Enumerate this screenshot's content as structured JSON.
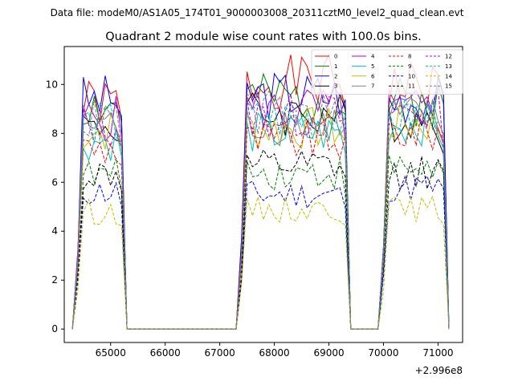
{
  "chart_data": {
    "type": "line",
    "suptitle": "Data file: modeM0/AS1A05_174T01_9000003008_20311cztM0_level2_quad_clean.evt",
    "title": "Quadrant 2 module wise count rates with 100.0s bins.",
    "xlabel": "",
    "ylabel": "",
    "x_offset_label": "+2.996e8",
    "xlim": [
      64150,
      71450
    ],
    "ylim": [
      -0.55,
      11.55
    ],
    "xticks": [
      65000,
      66000,
      67000,
      68000,
      69000,
      70000,
      71000
    ],
    "yticks": [
      0,
      2,
      4,
      6,
      8,
      10
    ],
    "legend_location": "upper-right",
    "legend_columns": 4,
    "segments": [
      {
        "start": 64400,
        "end": 65200
      },
      {
        "start": 67400,
        "end": 69300
      },
      {
        "start": 70000,
        "end": 71100
      }
    ],
    "series": [
      {
        "name": "0",
        "color": "#ff0000",
        "dashed": false,
        "levels": [
          9.2,
          10.1,
          9.9
        ]
      },
      {
        "name": "1",
        "color": "#008000",
        "dashed": false,
        "levels": [
          9.1,
          9.4,
          9.3
        ]
      },
      {
        "name": "2",
        "color": "#0000ff",
        "dashed": false,
        "levels": [
          9.4,
          9.6,
          9.4
        ]
      },
      {
        "name": "3",
        "color": "#000000",
        "dashed": false,
        "levels": [
          8.3,
          8.8,
          8.6
        ]
      },
      {
        "name": "4",
        "color": "#bf00bf",
        "dashed": false,
        "levels": [
          8.6,
          9.0,
          8.9
        ]
      },
      {
        "name": "5",
        "color": "#00bfbf",
        "dashed": false,
        "levels": [
          7.7,
          8.0,
          8.4
        ]
      },
      {
        "name": "6",
        "color": "#bfbf00",
        "dashed": false,
        "levels": [
          8.1,
          8.2,
          8.4
        ]
      },
      {
        "name": "7",
        "color": "#808080",
        "dashed": false,
        "levels": [
          8.4,
          8.4,
          8.6
        ]
      },
      {
        "name": "8",
        "color": "#ff0000",
        "dashed": true,
        "levels": [
          7.4,
          7.7,
          8.1
        ]
      },
      {
        "name": "9",
        "color": "#008000",
        "dashed": true,
        "levels": [
          6.3,
          6.4,
          6.6
        ]
      },
      {
        "name": "10",
        "color": "#0000ff",
        "dashed": true,
        "levels": [
          5.6,
          5.5,
          5.8
        ]
      },
      {
        "name": "11",
        "color": "#000000",
        "dashed": true,
        "levels": [
          6.3,
          6.6,
          6.4
        ]
      },
      {
        "name": "12",
        "color": "#bf00bf",
        "dashed": true,
        "levels": [
          8.3,
          8.7,
          8.9
        ]
      },
      {
        "name": "13",
        "color": "#00bfbf",
        "dashed": true,
        "levels": [
          8.4,
          8.6,
          8.7
        ]
      },
      {
        "name": "14",
        "color": "#bfbf00",
        "dashed": true,
        "levels": [
          4.8,
          4.9,
          4.9
        ]
      },
      {
        "name": "15",
        "color": "#808080",
        "dashed": true,
        "levels": [
          8.5,
          8.8,
          8.9
        ]
      }
    ]
  }
}
